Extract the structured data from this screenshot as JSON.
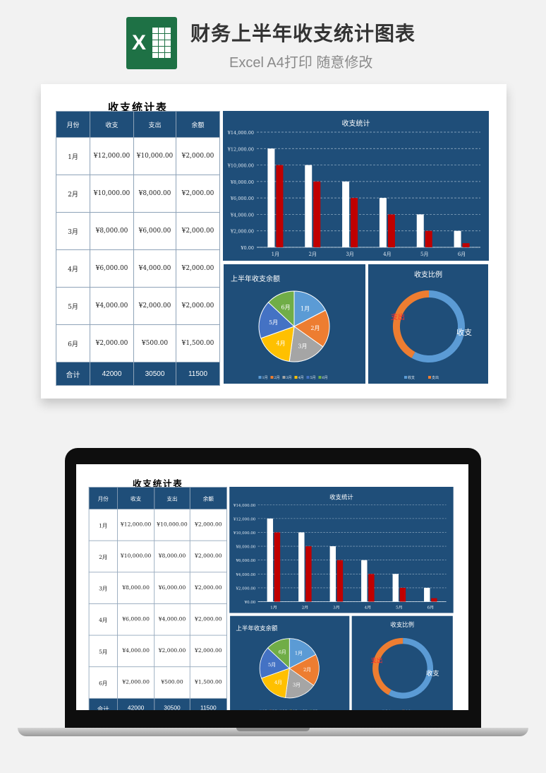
{
  "header": {
    "icon_letter": "X",
    "title": "财务上半年收支统计图表",
    "subtitle": "Excel A4打印 随意修改"
  },
  "sheet": {
    "title": "收支统计表",
    "columns": [
      "月份",
      "收支",
      "支出",
      "余额"
    ],
    "rows": [
      [
        "1月",
        "¥12,000.00",
        "¥10,000.00",
        "¥2,000.00"
      ],
      [
        "2月",
        "¥10,000.00",
        "¥8,000.00",
        "¥2,000.00"
      ],
      [
        "3月",
        "¥8,000.00",
        "¥6,000.00",
        "¥2,000.00"
      ],
      [
        "4月",
        "¥6,000.00",
        "¥4,000.00",
        "¥2,000.00"
      ],
      [
        "5月",
        "¥4,000.00",
        "¥2,000.00",
        "¥2,000.00"
      ],
      [
        "6月",
        "¥2,000.00",
        "¥500.00",
        "¥1,500.00"
      ]
    ],
    "total": [
      "合计",
      "42000",
      "30500",
      "11500"
    ]
  },
  "chart_data": [
    {
      "type": "bar",
      "title": "收支统计",
      "categories": [
        "1月",
        "2月",
        "3月",
        "4月",
        "5月",
        "6月"
      ],
      "series": [
        {
          "values": [
            12000,
            10000,
            8000,
            6000,
            4000,
            2000
          ],
          "color": "#ffffff"
        },
        {
          "values": [
            10000,
            8000,
            6000,
            4000,
            2000,
            500
          ],
          "color": "#c00000"
        }
      ],
      "ylim": [
        0,
        14000
      ],
      "yticks": [
        "¥0.00",
        "¥2,000.00",
        "¥4,000.00",
        "¥6,000.00",
        "¥8,000.00",
        "¥10,000.00",
        "¥12,000.00",
        "¥14,000.00"
      ],
      "grid": true
    },
    {
      "type": "pie",
      "title": "上半年收支余额",
      "labels": [
        "1月",
        "2月",
        "3月",
        "4月",
        "5月",
        "6月"
      ],
      "values": [
        2000,
        2000,
        2000,
        2000,
        2000,
        1500
      ],
      "colors": [
        "#5b9bd5",
        "#ed7d31",
        "#a5a5a5",
        "#ffc000",
        "#4472c4",
        "#70ad47"
      ],
      "legend": "bottom"
    },
    {
      "type": "pie",
      "title": "收支比例",
      "labels": [
        "收支",
        "支出"
      ],
      "values": [
        42000,
        30500
      ],
      "colors": [
        "#5b9bd5",
        "#ed7d31"
      ],
      "legend": "bottom"
    }
  ]
}
